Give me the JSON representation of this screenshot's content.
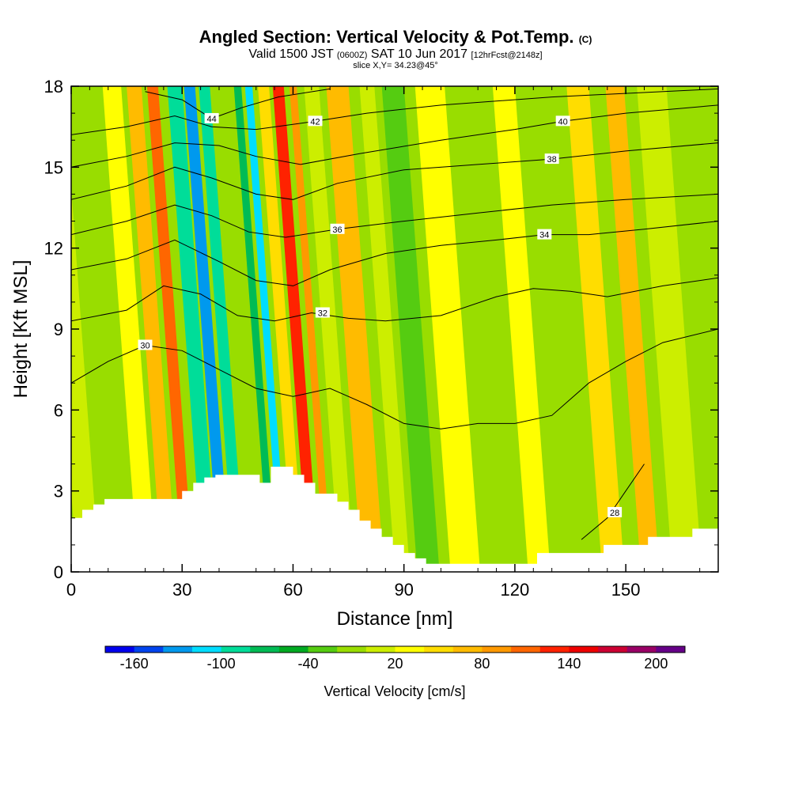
{
  "header": {
    "title": "Angled Section: Vertical Velocity & Pot.Temp.",
    "title_units": "(C)",
    "valid_main": "Valid 1500 JST",
    "valid_z": "(0600Z)",
    "valid_date": "SAT 10 Jun 2017",
    "valid_fcst": "[12hrFcst@2148z]",
    "slice": "slice X,Y= 34.23@45°"
  },
  "chart_data": {
    "type": "heatmap",
    "title": "Angled Section: Vertical Velocity & Pot.Temp. (C)",
    "xlabel": "Distance [nm]",
    "ylabel": "Height [Kft MSL]",
    "xlim": [
      0,
      175
    ],
    "ylim": [
      0,
      18
    ],
    "x_ticks": [
      0,
      30,
      60,
      90,
      120,
      150
    ],
    "y_ticks": [
      0,
      3,
      6,
      9,
      12,
      15,
      18
    ],
    "grid": false,
    "fill_field": "Vertical Velocity [cm/s]",
    "colorbar": {
      "title": "Vertical Velocity [cm/s]",
      "labels": [
        -160,
        -100,
        -40,
        20,
        80,
        140,
        200
      ],
      "levels": [
        -180,
        -160,
        -140,
        -120,
        -100,
        -80,
        -60,
        -40,
        -20,
        0,
        20,
        40,
        60,
        80,
        100,
        120,
        140,
        160,
        180,
        200,
        220
      ],
      "colors": [
        "#0000ee",
        "#0044ee",
        "#0099ee",
        "#00ddff",
        "#00dd99",
        "#00bb55",
        "#00aa22",
        "#55cc11",
        "#99dd00",
        "#ccee00",
        "#ffff00",
        "#ffdd00",
        "#ffbb00",
        "#ff9900",
        "#ff6600",
        "#ff2200",
        "#ee0000",
        "#cc0033",
        "#990066",
        "#660088"
      ]
    },
    "velocity_bands": [
      {
        "x_center": 3,
        "w": 6,
        "value": 0
      },
      {
        "x_center": 12,
        "w": 6,
        "value": -10
      },
      {
        "x_center": 19,
        "w": 5,
        "value": 20
      },
      {
        "x_center": 25,
        "w": 4,
        "value": 60
      },
      {
        "x_center": 30,
        "w": 3,
        "value": 100
      },
      {
        "x_center": 36,
        "w": 4,
        "value": -100
      },
      {
        "x_center": 40,
        "w": 3,
        "value": -140
      },
      {
        "x_center": 44,
        "w": 3,
        "value": -100
      },
      {
        "x_center": 49,
        "w": 3,
        "value": -20
      },
      {
        "x_center": 53,
        "w": 2,
        "value": -80
      },
      {
        "x_center": 56,
        "w": 2,
        "value": -120
      },
      {
        "x_center": 60,
        "w": 3,
        "value": 40
      },
      {
        "x_center": 64,
        "w": 3,
        "value": 120
      },
      {
        "x_center": 68,
        "w": 2,
        "value": 80
      },
      {
        "x_center": 73,
        "w": 4,
        "value": 10
      },
      {
        "x_center": 80,
        "w": 6,
        "value": 60
      },
      {
        "x_center": 88,
        "w": 4,
        "value": 0
      },
      {
        "x_center": 95,
        "w": 6,
        "value": -30
      },
      {
        "x_center": 105,
        "w": 8,
        "value": 30
      },
      {
        "x_center": 115,
        "w": 6,
        "value": -20
      },
      {
        "x_center": 125,
        "w": 6,
        "value": 20
      },
      {
        "x_center": 135,
        "w": 6,
        "value": -10
      },
      {
        "x_center": 145,
        "w": 6,
        "value": 40
      },
      {
        "x_center": 155,
        "w": 5,
        "value": 60
      },
      {
        "x_center": 165,
        "w": 8,
        "value": 0
      }
    ],
    "terrain": {
      "x": [
        0,
        3,
        6,
        9,
        12,
        18,
        30,
        33,
        36,
        39,
        42,
        48,
        51,
        54,
        57,
        60,
        63,
        66,
        69,
        72,
        75,
        78,
        81,
        84,
        87,
        90,
        93,
        96,
        102,
        108,
        114,
        120,
        126,
        132,
        138,
        144,
        150,
        156,
        162,
        168,
        175
      ],
      "z": [
        2.0,
        2.3,
        2.5,
        2.7,
        2.7,
        2.7,
        3.0,
        3.3,
        3.5,
        3.6,
        3.6,
        3.6,
        3.3,
        3.9,
        3.9,
        3.6,
        3.3,
        2.9,
        2.9,
        2.6,
        2.3,
        1.9,
        1.6,
        1.3,
        1.0,
        0.7,
        0.5,
        0.3,
        0.3,
        0.3,
        0.3,
        0.3,
        0.7,
        0.7,
        0.7,
        1.0,
        1.0,
        1.3,
        1.3,
        1.6,
        1.6
      ]
    },
    "pot_temp_contours": [
      {
        "value": 28,
        "label": "28",
        "label_x": 147,
        "label_y": 2.2,
        "points": [
          [
            138,
            1.2
          ],
          [
            145,
            2.0
          ],
          [
            150,
            3.0
          ],
          [
            155,
            4.0
          ]
        ]
      },
      {
        "value": 30,
        "label": "30",
        "label_x": 20,
        "label_y": 8.4,
        "points": [
          [
            0,
            7.0
          ],
          [
            10,
            7.8
          ],
          [
            20,
            8.4
          ],
          [
            30,
            8.2
          ],
          [
            40,
            7.5
          ],
          [
            50,
            6.8
          ],
          [
            60,
            6.5
          ],
          [
            70,
            6.8
          ],
          [
            80,
            6.2
          ],
          [
            90,
            5.5
          ],
          [
            100,
            5.3
          ],
          [
            110,
            5.5
          ],
          [
            120,
            5.5
          ],
          [
            130,
            5.8
          ],
          [
            140,
            7.0
          ],
          [
            150,
            7.8
          ],
          [
            160,
            8.5
          ],
          [
            175,
            9.0
          ]
        ]
      },
      {
        "value": 32,
        "label": "32",
        "label_x": 68,
        "label_y": 9.6,
        "points": [
          [
            0,
            9.3
          ],
          [
            15,
            9.7
          ],
          [
            25,
            10.6
          ],
          [
            35,
            10.3
          ],
          [
            45,
            9.5
          ],
          [
            55,
            9.3
          ],
          [
            65,
            9.6
          ],
          [
            75,
            9.4
          ],
          [
            85,
            9.3
          ],
          [
            100,
            9.5
          ],
          [
            115,
            10.2
          ],
          [
            125,
            10.5
          ],
          [
            135,
            10.4
          ],
          [
            145,
            10.2
          ],
          [
            160,
            10.6
          ],
          [
            175,
            10.9
          ]
        ]
      },
      {
        "value": 34,
        "label": "34",
        "label_x": 128,
        "label_y": 12.5,
        "points": [
          [
            0,
            11.2
          ],
          [
            15,
            11.6
          ],
          [
            28,
            12.3
          ],
          [
            40,
            11.5
          ],
          [
            50,
            10.8
          ],
          [
            60,
            10.6
          ],
          [
            70,
            11.2
          ],
          [
            85,
            11.8
          ],
          [
            100,
            12.1
          ],
          [
            115,
            12.3
          ],
          [
            128,
            12.5
          ],
          [
            140,
            12.5
          ],
          [
            155,
            12.7
          ],
          [
            175,
            13.0
          ]
        ]
      },
      {
        "value": 36,
        "label": "36",
        "label_x": 72,
        "label_y": 12.7,
        "points": [
          [
            0,
            12.5
          ],
          [
            15,
            13.0
          ],
          [
            28,
            13.6
          ],
          [
            38,
            13.2
          ],
          [
            48,
            12.6
          ],
          [
            58,
            12.4
          ],
          [
            72,
            12.7
          ],
          [
            90,
            13.0
          ],
          [
            110,
            13.3
          ],
          [
            130,
            13.6
          ],
          [
            150,
            13.8
          ],
          [
            175,
            14.0
          ]
        ]
      },
      {
        "value": 38,
        "label": "38",
        "label_x": 130,
        "label_y": 15.3,
        "points": [
          [
            0,
            13.8
          ],
          [
            15,
            14.3
          ],
          [
            28,
            15.0
          ],
          [
            38,
            14.6
          ],
          [
            50,
            14.0
          ],
          [
            60,
            13.8
          ],
          [
            72,
            14.4
          ],
          [
            90,
            14.9
          ],
          [
            110,
            15.1
          ],
          [
            130,
            15.3
          ],
          [
            150,
            15.6
          ],
          [
            175,
            15.9
          ]
        ]
      },
      {
        "value": 40,
        "label": "40",
        "label_x": 133,
        "label_y": 16.7,
        "points": [
          [
            0,
            15.0
          ],
          [
            15,
            15.4
          ],
          [
            28,
            15.9
          ],
          [
            40,
            15.8
          ],
          [
            50,
            15.4
          ],
          [
            62,
            15.1
          ],
          [
            78,
            15.5
          ],
          [
            100,
            16.0
          ],
          [
            120,
            16.4
          ],
          [
            133,
            16.7
          ],
          [
            150,
            17.0
          ],
          [
            175,
            17.3
          ]
        ]
      },
      {
        "value": 42,
        "label": "42",
        "label_x": 66,
        "label_y": 16.7,
        "points": [
          [
            0,
            16.2
          ],
          [
            15,
            16.5
          ],
          [
            28,
            16.9
          ],
          [
            38,
            16.5
          ],
          [
            50,
            16.4
          ],
          [
            66,
            16.7
          ],
          [
            80,
            17.0
          ],
          [
            100,
            17.3
          ],
          [
            130,
            17.6
          ],
          [
            175,
            17.9
          ]
        ]
      },
      {
        "value": 44,
        "label": "44",
        "label_x": 38,
        "label_y": 16.8,
        "points": [
          [
            20,
            17.8
          ],
          [
            30,
            17.5
          ],
          [
            38,
            16.8
          ],
          [
            46,
            17.2
          ],
          [
            56,
            17.6
          ],
          [
            70,
            17.9
          ]
        ]
      }
    ]
  }
}
